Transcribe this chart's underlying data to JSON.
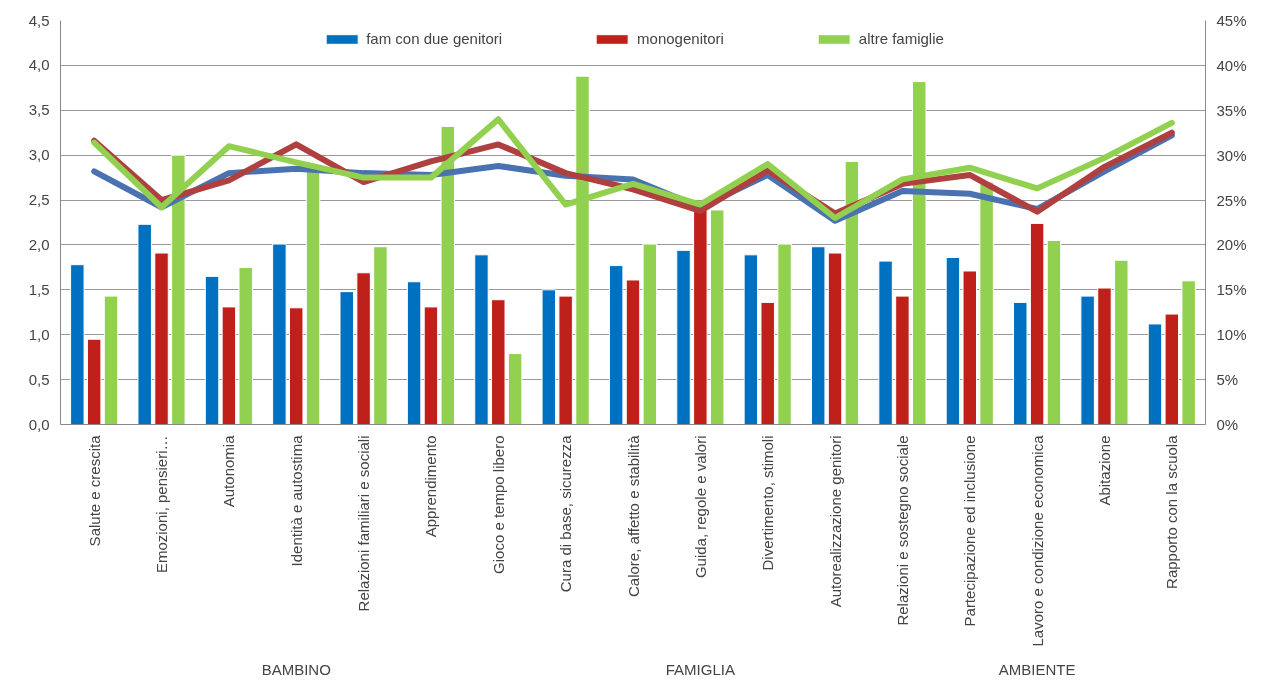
{
  "chart_data": {
    "type": "bar",
    "categories": [
      "Salute e crescita",
      "Emozioni, pensieri…",
      "Autonomia",
      "Identità e autostima",
      "Relazioni familiari e sociali",
      "Apprendimento",
      "Gioco e tempo libero",
      "Cura di base, sicurezza",
      "Calore, affetto e stabilità",
      "Guida, regole e valori",
      "Divertimento, stimoli",
      "Autorealizzazione genitori",
      "Relazioni e sostegno sociale",
      "Partecipazione ed inclusione",
      "Lavoro e condizione economica",
      "Abitazione",
      "Rapporto con la scuola"
    ],
    "series": [
      {
        "name": "fam con due genitori",
        "axis": "y2",
        "color": "#0070c0",
        "values": [
          17.8,
          22.3,
          16.5,
          20.1,
          14.8,
          15.9,
          18.9,
          15.0,
          17.7,
          19.4,
          18.9,
          19.8,
          18.2,
          18.6,
          13.6,
          14.3,
          11.2
        ]
      },
      {
        "name": "monogenitori",
        "axis": "y2",
        "color": "#c0201a",
        "values": [
          9.5,
          19.1,
          13.1,
          13.0,
          16.9,
          13.1,
          13.9,
          14.3,
          16.1,
          24.0,
          13.6,
          19.1,
          14.3,
          17.1,
          22.4,
          15.2,
          12.3
        ]
      },
      {
        "name": "altre famiglie",
        "axis": "y2",
        "color": "#92d050",
        "values": [
          14.3,
          30.0,
          17.5,
          28.5,
          19.8,
          33.2,
          7.9,
          38.8,
          20.1,
          23.9,
          20.1,
          29.3,
          38.2,
          27.0,
          20.5,
          18.3,
          16.0
        ]
      },
      {
        "type": "line",
        "color": "#4a72b0",
        "values": [
          2.82,
          2.42,
          2.8,
          2.85,
          2.8,
          2.78,
          2.88,
          2.77,
          2.73,
          2.42,
          2.78,
          2.27,
          2.6,
          2.57,
          2.4,
          2.82,
          3.22
        ]
      },
      {
        "type": "line",
        "color": "#b04040",
        "values": [
          3.16,
          2.5,
          2.72,
          3.12,
          2.7,
          2.93,
          3.12,
          2.8,
          2.62,
          2.38,
          2.83,
          2.35,
          2.68,
          2.78,
          2.37,
          2.87,
          3.25
        ]
      },
      {
        "type": "line",
        "color": "#92d050",
        "values": [
          3.14,
          2.42,
          3.1,
          2.92,
          2.75,
          2.75,
          3.4,
          2.45,
          2.68,
          2.45,
          2.9,
          2.3,
          2.73,
          2.86,
          2.63,
          2.97,
          3.36
        ]
      }
    ],
    "ylim": [
      0,
      4.5
    ],
    "yticks": [
      {
        "value": 0,
        "label": "0,0"
      },
      {
        "value": 0.5,
        "label": "0,5"
      },
      {
        "value": 1,
        "label": "1,0"
      },
      {
        "value": 1.5,
        "label": "1,5"
      },
      {
        "value": 2,
        "label": "2,0"
      },
      {
        "value": 2.5,
        "label": "2,5"
      },
      {
        "value": 3,
        "label": "3,0"
      },
      {
        "value": 3.5,
        "label": "3,5"
      },
      {
        "value": 4,
        "label": "4,0"
      },
      {
        "value": 4.5,
        "label": "4,5"
      }
    ],
    "y2lim": [
      0,
      45
    ],
    "y2ticks": [
      {
        "value": 0,
        "label": "0%"
      },
      {
        "value": 5,
        "label": "5%"
      },
      {
        "value": 10,
        "label": "10%"
      },
      {
        "value": 15,
        "label": "15%"
      },
      {
        "value": 20,
        "label": "20%"
      },
      {
        "value": 25,
        "label": "25%"
      },
      {
        "value": 30,
        "label": "30%"
      },
      {
        "value": 35,
        "label": "35%"
      },
      {
        "value": 40,
        "label": "40%"
      },
      {
        "value": 45,
        "label": "45%"
      }
    ],
    "grid": "y",
    "legend": "top",
    "annotations": [
      "BAMBINO",
      "FAMIGLIA",
      "AMBIENTE"
    ]
  }
}
